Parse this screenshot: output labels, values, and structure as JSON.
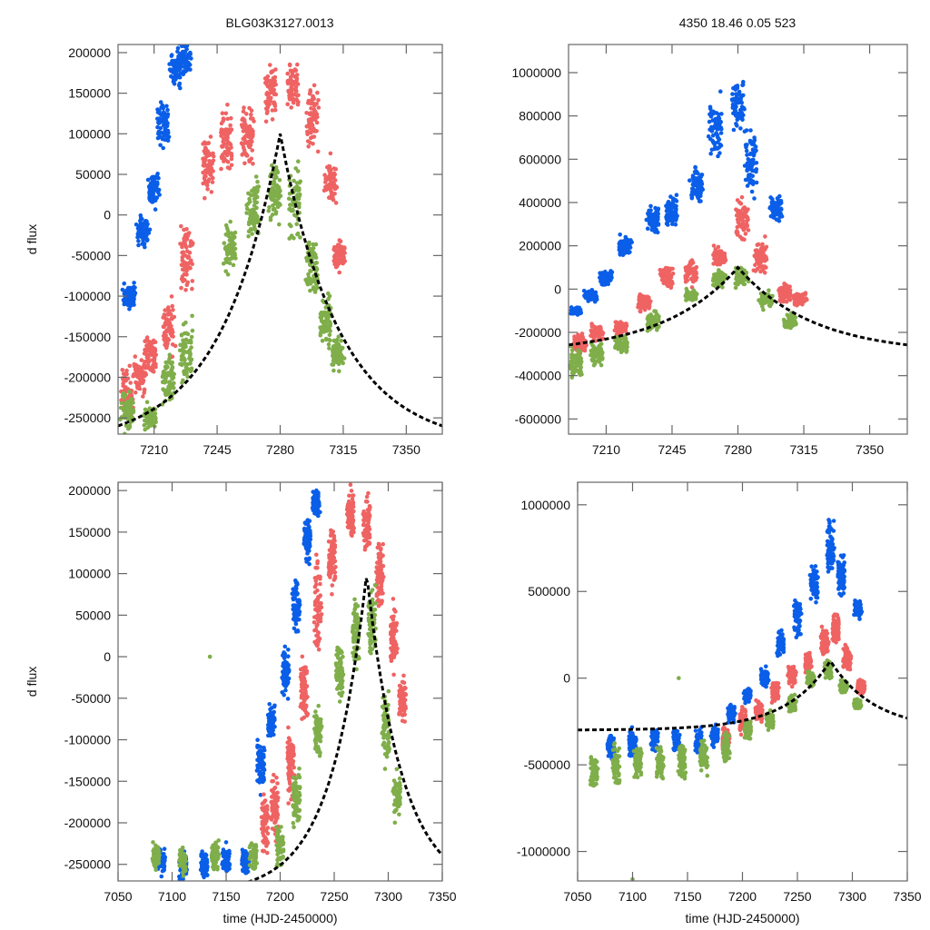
{
  "header": {
    "left_title": "BLG03K3127.0013",
    "right_title": "4350  18.46  0.05  523"
  },
  "colors": {
    "blue": "#0a5ee8",
    "red": "#ef6363",
    "green": "#7fae4a",
    "model": "#000000",
    "frame": "#666666"
  },
  "chart_data": [
    {
      "id": "top-left",
      "type": "scatter",
      "title": "BLG03K3127.0013",
      "xlabel": "",
      "ylabel": "d flux",
      "xlim": [
        7190,
        7370
      ],
      "ylim": [
        -270000,
        210000
      ],
      "xticks": [
        7210,
        7245,
        7280,
        7315,
        7350
      ],
      "yticks": [
        200000,
        150000,
        100000,
        50000,
        0,
        -50000,
        -100000,
        -150000,
        -200000,
        -250000
      ],
      "xtick_labels": [
        "7210",
        "7245",
        "7280",
        "7315",
        "7350"
      ],
      "ytick_labels": [
        "200000",
        "150000",
        "100000",
        "50000",
        "0",
        "-50000",
        "-100000",
        "-150000",
        "-200000",
        "-250000"
      ],
      "model": {
        "t0": 7280,
        "peak": 100000,
        "base": -285000,
        "tau": 33
      },
      "series": [
        {
          "name": "blue",
          "clusters": [
            [
              7196,
              -100000,
              30000
            ],
            [
              7204,
              -20000,
              40000
            ],
            [
              7210,
              30000,
              40000
            ],
            [
              7215,
              110000,
              60000
            ],
            [
              7222,
              180000,
              50000
            ],
            [
              7227,
              190000,
              40000
            ]
          ]
        },
        {
          "name": "red",
          "clusters": [
            [
              7195,
              -220000,
              60000
            ],
            [
              7202,
              -200000,
              60000
            ],
            [
              7208,
              -170000,
              50000
            ],
            [
              7218,
              -140000,
              60000
            ],
            [
              7228,
              -50000,
              80000
            ],
            [
              7240,
              60000,
              80000
            ],
            [
              7250,
              90000,
              80000
            ],
            [
              7262,
              100000,
              80000
            ],
            [
              7275,
              150000,
              70000
            ],
            [
              7287,
              160000,
              70000
            ],
            [
              7298,
              120000,
              80000
            ],
            [
              7308,
              40000,
              60000
            ],
            [
              7313,
              -50000,
              40000
            ]
          ]
        },
        {
          "name": "green",
          "clusters": [
            [
              7195,
              -240000,
              50000
            ],
            [
              7208,
              -250000,
              30000
            ],
            [
              7218,
              -200000,
              70000
            ],
            [
              7228,
              -170000,
              80000
            ],
            [
              7252,
              -40000,
              60000
            ],
            [
              7265,
              10000,
              80000
            ],
            [
              7277,
              30000,
              90000
            ],
            [
              7288,
              20000,
              90000
            ],
            [
              7298,
              -60000,
              70000
            ],
            [
              7305,
              -130000,
              60000
            ],
            [
              7312,
              -170000,
              40000
            ]
          ]
        }
      ]
    },
    {
      "id": "top-right",
      "type": "scatter",
      "title": "4350  18.46  0.05  523",
      "xlabel": "",
      "ylabel": "",
      "xlim": [
        7190,
        7370
      ],
      "ylim": [
        -670000,
        1130000
      ],
      "xticks": [
        7210,
        7245,
        7280,
        7315,
        7350
      ],
      "yticks": [
        1000000,
        800000,
        600000,
        400000,
        200000,
        0,
        -200000,
        -400000,
        -600000
      ],
      "xtick_labels": [
        "7210",
        "7245",
        "7280",
        "7315",
        "7350"
      ],
      "ytick_labels": [
        "1000000",
        "800000",
        "600000",
        "400000",
        "200000",
        "0",
        "-200000",
        "-400000",
        "-600000"
      ],
      "model": {
        "t0": 7280,
        "peak": 100000,
        "base": -300000,
        "tau": 40
      },
      "series": [
        {
          "name": "blue",
          "clusters": [
            [
              7194,
              -100000,
              40000
            ],
            [
              7202,
              -30000,
              50000
            ],
            [
              7210,
              50000,
              80000
            ],
            [
              7220,
              200000,
              80000
            ],
            [
              7235,
              320000,
              140000
            ],
            [
              7245,
              350000,
              150000
            ],
            [
              7258,
              480000,
              160000
            ],
            [
              7268,
              750000,
              250000
            ],
            [
              7280,
              850000,
              250000
            ],
            [
              7287,
              600000,
              300000
            ],
            [
              7300,
              380000,
              120000
            ]
          ]
        },
        {
          "name": "red",
          "clusters": [
            [
              7196,
              -250000,
              100000
            ],
            [
              7205,
              -200000,
              80000
            ],
            [
              7218,
              -180000,
              60000
            ],
            [
              7230,
              -60000,
              80000
            ],
            [
              7242,
              60000,
              100000
            ],
            [
              7255,
              80000,
              100000
            ],
            [
              7270,
              150000,
              100000
            ],
            [
              7282,
              320000,
              200000
            ],
            [
              7292,
              150000,
              150000
            ],
            [
              7305,
              -20000,
              80000
            ],
            [
              7313,
              -50000,
              60000
            ]
          ]
        },
        {
          "name": "green",
          "clusters": [
            [
              7194,
              -350000,
              150000
            ],
            [
              7205,
              -300000,
              100000
            ],
            [
              7218,
              -250000,
              80000
            ],
            [
              7235,
              -150000,
              80000
            ],
            [
              7255,
              -30000,
              60000
            ],
            [
              7270,
              50000,
              80000
            ],
            [
              7282,
              60000,
              100000
            ],
            [
              7295,
              -50000,
              80000
            ],
            [
              7308,
              -150000,
              60000
            ]
          ]
        }
      ]
    },
    {
      "id": "bottom-left",
      "type": "scatter",
      "title": "",
      "xlabel": "time (HJD-2450000)",
      "ylabel": "d flux",
      "xlim": [
        7050,
        7350
      ],
      "ylim": [
        -270000,
        210000
      ],
      "xticks": [
        7050,
        7100,
        7150,
        7200,
        7250,
        7300,
        7350
      ],
      "yticks": [
        200000,
        150000,
        100000,
        50000,
        0,
        -50000,
        -100000,
        -150000,
        -200000,
        -250000
      ],
      "xtick_labels": [
        "7050",
        "7100",
        "7150",
        "7200",
        "7250",
        "7300",
        "7350"
      ],
      "ytick_labels": [
        "200000",
        "150000",
        "100000",
        "50000",
        "0",
        "-50000",
        "-100000",
        "-150000",
        "-200000",
        "-250000"
      ],
      "model": {
        "t0": 7280,
        "peak": 100000,
        "base": -285000,
        "tau": 33
      },
      "series": [
        {
          "name": "blue",
          "clusters": [
            [
              7090,
              -245000,
              30000
            ],
            [
              7110,
              -250000,
              30000
            ],
            [
              7130,
              -250000,
              30000
            ],
            [
              7150,
              -245000,
              35000
            ],
            [
              7168,
              -245000,
              30000
            ],
            [
              7182,
              -130000,
              60000
            ],
            [
              7192,
              -80000,
              40000
            ],
            [
              7205,
              -20000,
              60000
            ],
            [
              7215,
              60000,
              60000
            ],
            [
              7225,
              140000,
              50000
            ],
            [
              7233,
              185000,
              30000
            ]
          ]
        },
        {
          "name": "red",
          "clusters": [
            [
              7186,
              -200000,
              70000
            ],
            [
              7195,
              -180000,
              80000
            ],
            [
              7210,
              -130000,
              80000
            ],
            [
              7222,
              -40000,
              90000
            ],
            [
              7235,
              60000,
              100000
            ],
            [
              7248,
              120000,
              80000
            ],
            [
              7265,
              170000,
              60000
            ],
            [
              7280,
              160000,
              70000
            ],
            [
              7292,
              100000,
              90000
            ],
            [
              7305,
              20000,
              80000
            ],
            [
              7313,
              -50000,
              50000
            ]
          ]
        },
        {
          "name": "green",
          "clusters": [
            [
              7085,
              -240000,
              30000
            ],
            [
              7110,
              -245000,
              30000
            ],
            [
              7140,
              -240000,
              30000
            ],
            [
              7175,
              -240000,
              30000
            ],
            [
              7200,
              -230000,
              50000
            ],
            [
              7215,
              -170000,
              70000
            ],
            [
              7235,
              -90000,
              60000
            ],
            [
              7255,
              -20000,
              70000
            ],
            [
              7270,
              30000,
              80000
            ],
            [
              7285,
              40000,
              90000
            ],
            [
              7298,
              -80000,
              80000
            ],
            [
              7308,
              -170000,
              50000
            ]
          ]
        }
      ],
      "outliers": [
        {
          "series": "green",
          "x": 7135,
          "y": 0
        }
      ]
    },
    {
      "id": "bottom-right",
      "type": "scatter",
      "title": "",
      "xlabel": "time (HJD-2450000)",
      "ylabel": "",
      "xlim": [
        7050,
        7350
      ],
      "ylim": [
        -1170000,
        1130000
      ],
      "xticks": [
        7050,
        7100,
        7150,
        7200,
        7250,
        7300,
        7350
      ],
      "yticks": [
        1000000,
        500000,
        0,
        -500000,
        -1000000
      ],
      "xtick_labels": [
        "7050",
        "7100",
        "7150",
        "7200",
        "7250",
        "7300",
        "7350"
      ],
      "ytick_labels": [
        "1000000",
        "500000",
        "0",
        "-500000",
        "-1000000"
      ],
      "model": {
        "t0": 7280,
        "peak": 100000,
        "base": -300000,
        "tau": 40
      },
      "series": [
        {
          "name": "blue",
          "clusters": [
            [
              7080,
              -400000,
              150000
            ],
            [
              7100,
              -380000,
              150000
            ],
            [
              7120,
              -350000,
              150000
            ],
            [
              7140,
              -360000,
              150000
            ],
            [
              7160,
              -370000,
              150000
            ],
            [
              7175,
              -330000,
              130000
            ],
            [
              7190,
              -200000,
              100000
            ],
            [
              7205,
              -100000,
              80000
            ],
            [
              7220,
              0,
              100000
            ],
            [
              7235,
              200000,
              150000
            ],
            [
              7250,
              350000,
              200000
            ],
            [
              7265,
              550000,
              250000
            ],
            [
              7280,
              750000,
              300000
            ],
            [
              7290,
              600000,
              250000
            ],
            [
              7305,
              400000,
              100000
            ]
          ]
        },
        {
          "name": "red",
          "clusters": [
            [
              7185,
              -350000,
              150000
            ],
            [
              7200,
              -250000,
              150000
            ],
            [
              7215,
              -200000,
              120000
            ],
            [
              7230,
              -80000,
              120000
            ],
            [
              7245,
              20000,
              120000
            ],
            [
              7260,
              100000,
              120000
            ],
            [
              7275,
              200000,
              150000
            ],
            [
              7285,
              300000,
              200000
            ],
            [
              7295,
              120000,
              150000
            ],
            [
              7308,
              -50000,
              80000
            ]
          ]
        },
        {
          "name": "green",
          "clusters": [
            [
              7065,
              -550000,
              180000
            ],
            [
              7085,
              -500000,
              200000
            ],
            [
              7105,
              -480000,
              200000
            ],
            [
              7125,
              -500000,
              200000
            ],
            [
              7145,
              -480000,
              200000
            ],
            [
              7165,
              -450000,
              180000
            ],
            [
              7185,
              -400000,
              150000
            ],
            [
              7205,
              -300000,
              120000
            ],
            [
              7225,
              -250000,
              100000
            ],
            [
              7245,
              -150000,
              100000
            ],
            [
              7262,
              0,
              80000
            ],
            [
              7278,
              50000,
              100000
            ],
            [
              7292,
              -50000,
              80000
            ],
            [
              7305,
              -150000,
              60000
            ]
          ]
        }
      ],
      "outliers": [
        {
          "series": "green",
          "x": 7142,
          "y": 0
        },
        {
          "series": "green",
          "x": 7100,
          "y": -1160000
        }
      ]
    }
  ]
}
